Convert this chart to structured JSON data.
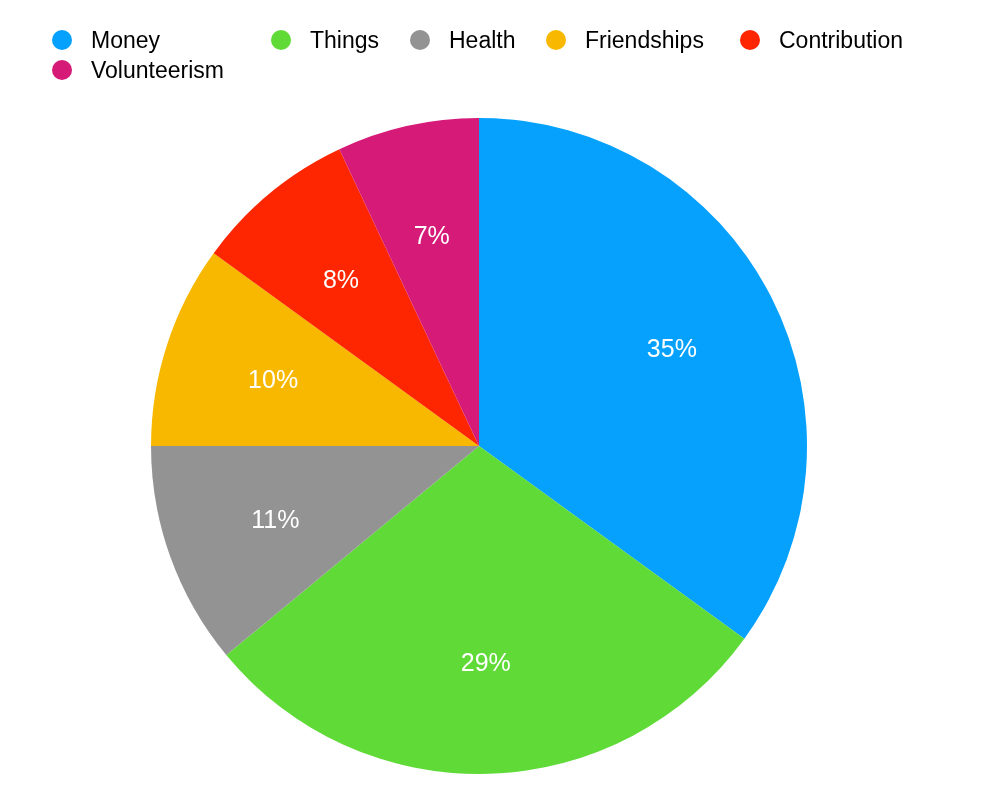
{
  "chart_data": {
    "type": "pie",
    "categories": [
      "Money",
      "Things",
      "Health",
      "Friendships",
      "Contribution",
      "Volunteerism"
    ],
    "values": [
      35,
      29,
      11,
      10,
      8,
      7
    ],
    "colors": [
      "#05a1fd",
      "#5fda37",
      "#939393",
      "#f8b800",
      "#fd2600",
      "#d61a78"
    ],
    "value_labels": [
      "35%",
      "29%",
      "11%",
      "10%",
      "8%",
      "7%"
    ],
    "legend": "top left"
  }
}
